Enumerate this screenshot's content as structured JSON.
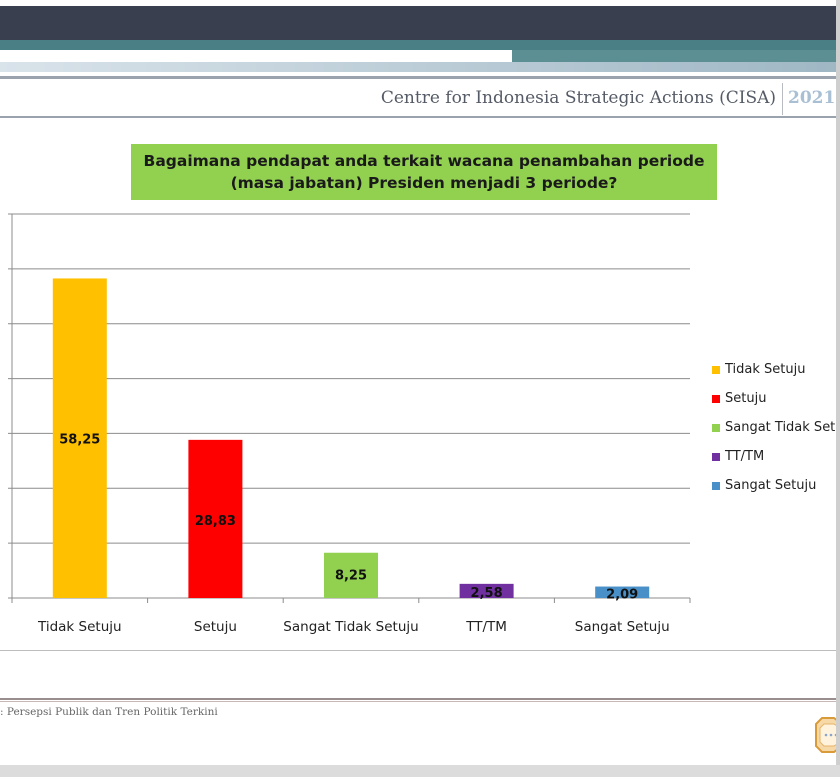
{
  "header": {
    "organization": "Centre for Indonesia Strategic Actions (CISA)",
    "year": "2021"
  },
  "footer": {
    "text": ": Persepsi Publik dan Tren Politik Terkini"
  },
  "colors": {
    "tidak_setuju": "#ffc000",
    "setuju": "#ff0000",
    "sangat_tidak_setuju": "#92d050",
    "tt_tm": "#7030a0",
    "sangat_setuju": "#4a90c8",
    "title_background": "#92d050",
    "header_dark": "#3a3f4f",
    "header_teal": "#4b7f86"
  },
  "chart_data": {
    "type": "bar",
    "title": "Bagaimana pendapat anda terkait wacana penambahan periode (masa jabatan) Presiden menjadi 3 periode?",
    "categories": [
      "Tidak Setuju",
      "Setuju",
      "Sangat Tidak Setuju",
      "TT/TM",
      "Sangat Setuju"
    ],
    "values": [
      58.25,
      28.83,
      8.25,
      2.58,
      2.09
    ],
    "data_labels": [
      "58,25",
      "28,83",
      "8,25",
      "2,58",
      "2,09"
    ],
    "colors": [
      "#ffc000",
      "#ff0000",
      "#92d050",
      "#7030a0",
      "#4a90c8"
    ],
    "ylim": [
      0,
      70
    ],
    "grid": true,
    "legend_position": "right",
    "legend": [
      "Tidak Setuju",
      "Setuju",
      "Sangat Tidak Setuju",
      "TT/TM",
      "Sangat Setuju"
    ]
  }
}
